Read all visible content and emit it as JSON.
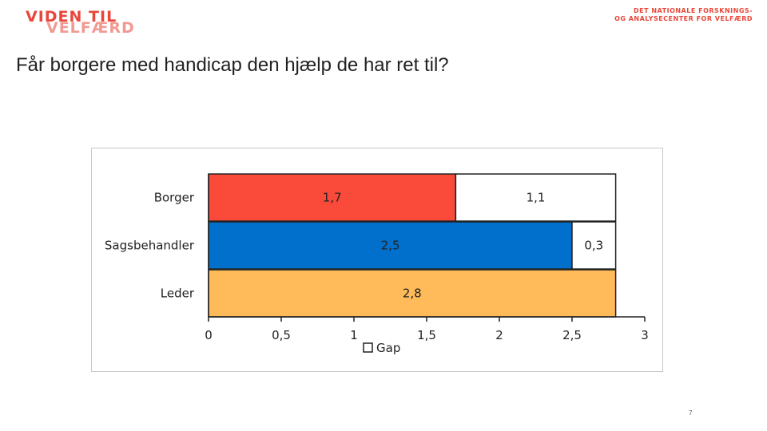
{
  "logo_left": {
    "line1": "VIDEN TIL",
    "line2": "VELFÆRD"
  },
  "logo_right": {
    "line1": "DET NATIONALE FORSKNINGS-",
    "line2": "OG ANALYSECENTER FOR VELFÆRD"
  },
  "slide": {
    "title": "Får borgere med handicap den hjælp de har ret til?",
    "page_number": "7"
  },
  "chart_data": {
    "type": "bar",
    "orientation": "horizontal",
    "stacked": true,
    "categories": [
      "Borger",
      "Sagsbehandler",
      "Leder"
    ],
    "series": [
      {
        "values": [
          1.7,
          2.5,
          2.8
        ],
        "value_labels": [
          "1,7",
          "2,5",
          "2,8"
        ],
        "colors": [
          "#f94a3a",
          "#0070cc",
          "#ffbb5a"
        ]
      },
      {
        "name": "Gap",
        "values": [
          1.1,
          0.3,
          0
        ],
        "value_labels": [
          "1,1",
          "0,3",
          ""
        ],
        "color": "#ffffff"
      }
    ],
    "xlim": [
      0,
      3
    ],
    "xticks": [
      0,
      0.5,
      1,
      1.5,
      2,
      2.5,
      3
    ],
    "xtick_labels": [
      "0",
      "0,5",
      "1",
      "1,5",
      "2",
      "2,5",
      "3"
    ],
    "grid": false,
    "legend_position": "bottom"
  }
}
